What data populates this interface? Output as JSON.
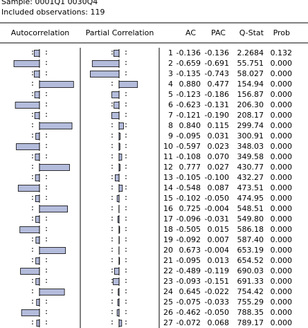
{
  "header": {
    "sample": "Sample: 0001Q1 0030Q4",
    "observations": "Included observations: 119"
  },
  "columns": {
    "autocorrelation": "Autocorrelation",
    "partial": "Partial Correlation",
    "ac": "AC",
    "pac": "PAC",
    "qstat": "Q-Stat",
    "prob": "Prob"
  },
  "correlogram": {
    "lags": [
      1,
      2,
      3,
      4,
      5,
      6,
      7,
      8,
      9,
      10,
      11,
      12,
      13,
      14,
      15,
      16,
      17,
      18,
      19,
      20,
      21,
      22,
      23,
      24,
      25,
      26,
      27
    ],
    "ac": {
      "values": [
        -0.136,
        -0.659,
        -0.135,
        0.88,
        -0.123,
        -0.623,
        -0.121,
        0.84,
        -0.095,
        -0.597,
        -0.108,
        0.777,
        -0.105,
        -0.548,
        -0.102,
        0.725,
        -0.096,
        -0.505,
        -0.092,
        0.673,
        -0.095,
        -0.489,
        -0.093,
        0.645,
        -0.075,
        -0.462,
        -0.072
      ],
      "value_labels": [
        "-0.136",
        "-0.659",
        "-0.135",
        "0.880",
        "-0.123",
        "-0.623",
        "-0.121",
        "0.840",
        "-0.095",
        "-0.597",
        "-0.108",
        "0.777",
        "-0.105",
        "-0.548",
        "-0.102",
        "0.725",
        "-0.096",
        "-0.505",
        "-0.092",
        "0.673",
        "-0.095",
        "-0.489",
        "-0.093",
        "0.645",
        "-0.075",
        "-0.462",
        "-0.072"
      ]
    },
    "pac": {
      "values": [
        -0.136,
        -0.691,
        -0.743,
        0.477,
        -0.186,
        -0.131,
        -0.19,
        0.115,
        0.031,
        0.023,
        0.07,
        0.027,
        -0.1,
        0.087,
        -0.05,
        -0.004,
        -0.031,
        0.015,
        0.007,
        -0.004,
        0.013,
        -0.119,
        -0.151,
        -0.022,
        -0.033,
        -0.05,
        0.068
      ],
      "value_labels": [
        "-0.136",
        "-0.691",
        "-0.743",
        "0.477",
        "-0.186",
        "-0.131",
        "-0.190",
        "0.115",
        "0.031",
        "0.023",
        "0.070",
        "0.027",
        "-0.100",
        "0.087",
        "-0.050",
        "-0.004",
        "-0.031",
        "0.015",
        "0.007",
        "-0.004",
        "0.013",
        "-0.119",
        "-0.151",
        "-0.022",
        "-0.033",
        "-0.050",
        "0.068"
      ]
    },
    "qstat": [
      "2.2684",
      "55.751",
      "58.027",
      "154.94",
      "156.87",
      "206.30",
      "208.17",
      "299.74",
      "300.91",
      "348.03",
      "349.58",
      "430.77",
      "432.27",
      "473.51",
      "474.95",
      "548.51",
      "549.80",
      "586.18",
      "587.40",
      "653.19",
      "654.52",
      "690.03",
      "691.33",
      "754.42",
      "755.29",
      "788.35",
      "789.17"
    ],
    "prob": [
      "0.132",
      "0.000",
      "0.000",
      "0.000",
      "0.000",
      "0.000",
      "0.000",
      "0.000",
      "0.000",
      "0.000",
      "0.000",
      "0.000",
      "0.000",
      "0.000",
      "0.000",
      "0.000",
      "0.000",
      "0.000",
      "0.000",
      "0.000",
      "0.000",
      "0.000",
      "0.000",
      "0.000",
      "0.000",
      "0.000",
      "0.000"
    ]
  }
}
